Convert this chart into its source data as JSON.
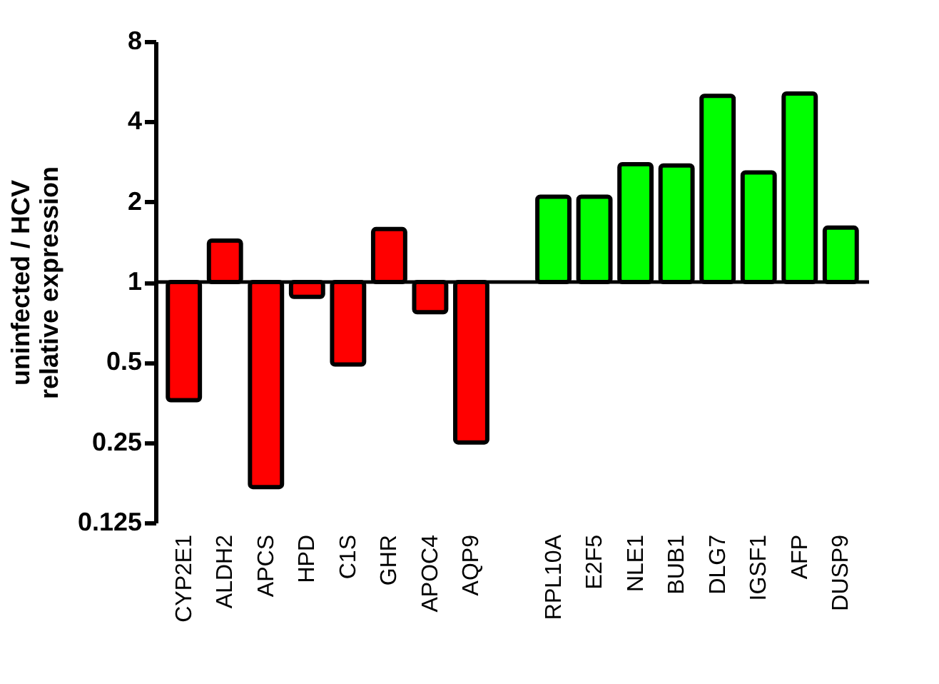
{
  "chart_data": {
    "type": "bar",
    "ylabel": "uninfected / HCV\nrelative expression",
    "categories": [
      "CYP2E1",
      "ALDH2",
      "APCS",
      "HPD",
      "C1S",
      "GHR",
      "APOC4",
      "AQP9",
      null,
      "RPL10A",
      "E2F5",
      "NLE1",
      "BUB1",
      "DLG7",
      "IGSF1",
      "AFP",
      "DUSP9"
    ],
    "values": [
      -0.64,
      0.43,
      -0.83,
      -0.12,
      -0.51,
      0.58,
      -0.23,
      -0.75,
      null,
      1.09,
      1.09,
      1.77,
      1.74,
      4.0,
      1.58,
      4.1,
      0.6
    ],
    "base": [
      1,
      1,
      1,
      1,
      1,
      1,
      1,
      1,
      null,
      1,
      1,
      1,
      1,
      1,
      1,
      1,
      1
    ],
    "colors": [
      "#ff0000",
      "#ff0000",
      "#ff0000",
      "#ff0000",
      "#ff0000",
      "#ff0000",
      "#ff0000",
      "#ff0000",
      "#ffffff",
      "#00ff00",
      "#00ff00",
      "#00ff00",
      "#00ff00",
      "#00ff00",
      "#00ff00",
      "#00ff00",
      "#00ff00"
    ],
    "log": "y",
    "ylim": [
      0.125,
      8
    ],
    "yticks": [
      0.125,
      0.25,
      0.5,
      1,
      2,
      4,
      8
    ],
    "grid": false,
    "ref_lines": [
      {
        "axis": "y",
        "value": 1,
        "color": "#000000"
      }
    ]
  }
}
